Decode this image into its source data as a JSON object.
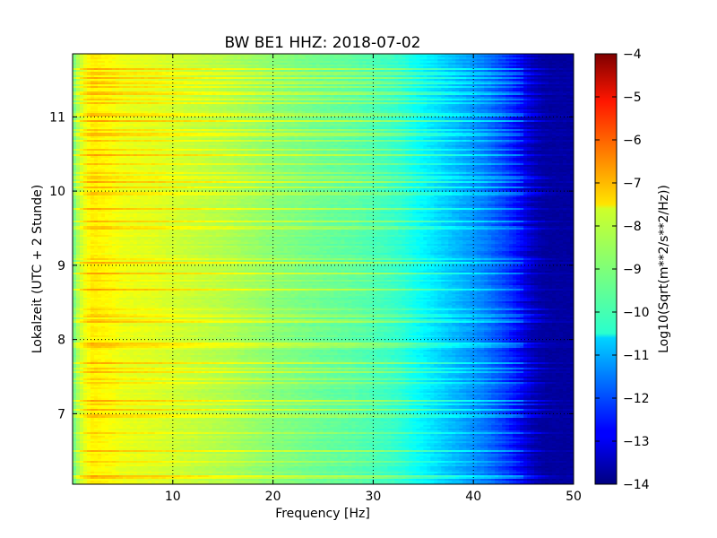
{
  "chart_data": {
    "type": "heatmap",
    "title": "BW BE1 HHZ: 2018-07-02",
    "xlabel": "Frequency [Hz]",
    "ylabel": "Lokalzeit (UTC + 2 Stunde)",
    "colorbar_label": "Log10(Sqrt(m**2/s**2/Hz))",
    "xlim": [
      0,
      50
    ],
    "ylim": [
      11.85,
      6.05
    ],
    "clim": [
      -14,
      -4
    ],
    "colormap": "jet",
    "xticks": [
      10,
      20,
      30,
      40,
      50
    ],
    "xtick_labels": [
      "10",
      "20",
      "30",
      "40",
      "50"
    ],
    "yticks": [
      7,
      8,
      9,
      10,
      11
    ],
    "ytick_labels": [
      "7",
      "8",
      "9",
      "10",
      "11"
    ],
    "cticks": [
      -4,
      -5,
      -6,
      -7,
      -8,
      -9,
      -10,
      -11,
      -12,
      -13,
      -14
    ],
    "ctick_labels": [
      "−4",
      "−5",
      "−6",
      "−7",
      "−8",
      "−9",
      "−10",
      "−11",
      "−12",
      "−13",
      "−14"
    ],
    "grid": true,
    "profile": {
      "frequency": [
        0,
        0.5,
        1,
        1.5,
        2,
        3,
        4,
        5,
        8,
        10,
        15,
        20,
        25,
        28,
        30,
        32,
        33,
        34,
        36,
        38,
        40,
        41,
        42,
        43,
        44,
        45,
        46,
        47,
        50
      ],
      "log_amplitude": [
        -9.3,
        -8.6,
        -8.1,
        -7.8,
        -7.6,
        -7.7,
        -7.8,
        -7.95,
        -8.05,
        -8.2,
        -8.5,
        -8.9,
        -9.2,
        -9.35,
        -9.5,
        -9.7,
        -9.85,
        -10.1,
        -10.5,
        -10.9,
        -11.3,
        -11.5,
        -11.8,
        -12.1,
        -12.5,
        -13.0,
        -13.5,
        -13.7,
        -13.7
      ]
    }
  }
}
